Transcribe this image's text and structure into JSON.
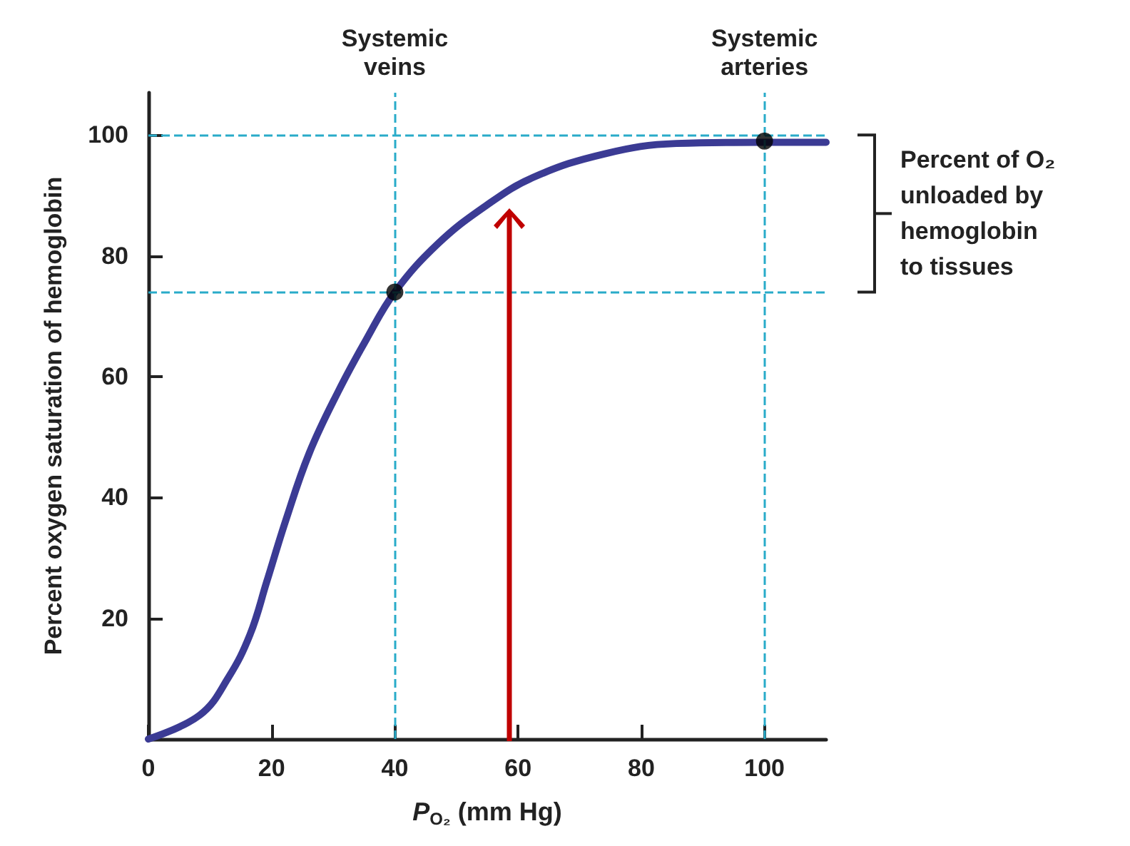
{
  "chart_data": {
    "type": "line",
    "xlabel": "P$_{O₂}$ (mm Hg)",
    "ylabel": "Percent oxygen saturation of hemoglobin",
    "xlim": [
      0,
      110
    ],
    "xticks": [
      0,
      20,
      40,
      60,
      80,
      100
    ],
    "ylim": [
      0,
      107
    ],
    "yticks": [
      20,
      40,
      60,
      80,
      100
    ],
    "grid": false,
    "series": [
      {
        "color": "#3b3b94",
        "marker": "none",
        "x": [
          0,
          8.4,
          13,
          16.5,
          19.2,
          22.3,
          26.1,
          30.8,
          35.4,
          40,
          47,
          54.8,
          62.5,
          74.1,
          85.7,
          99.6,
          110
        ],
        "values": [
          0,
          4,
          10.2,
          17.3,
          26,
          36.2,
          47.3,
          57.5,
          66.2,
          74,
          82,
          88.3,
          93,
          96.9,
          98.6,
          98.8,
          98.8
        ]
      },
      {
        "type": "scatter",
        "color": "#000000",
        "marker": "circle",
        "x": [
          40,
          100
        ],
        "values": [
          74,
          99
        ]
      }
    ],
    "ref_lines": [
      {
        "axis": "x",
        "value": 40,
        "label": "Systemic\nveins",
        "color": "#29abc9",
        "line_style": "dashed"
      },
      {
        "axis": "x",
        "value": 100,
        "label": "Systemic\narteries",
        "color": "#29abc9",
        "line_style": "dashed"
      },
      {
        "axis": "y",
        "value": 100,
        "label": null,
        "color": "#29abc9",
        "line_style": "dashed"
      },
      {
        "axis": "y",
        "value": 74,
        "label": null,
        "color": "#29abc9",
        "line_style": "dashed"
      }
    ],
    "annotations": [
      "Percent of O₂\nunloaded by\nhemoglobin\nto tissues"
    ]
  }
}
